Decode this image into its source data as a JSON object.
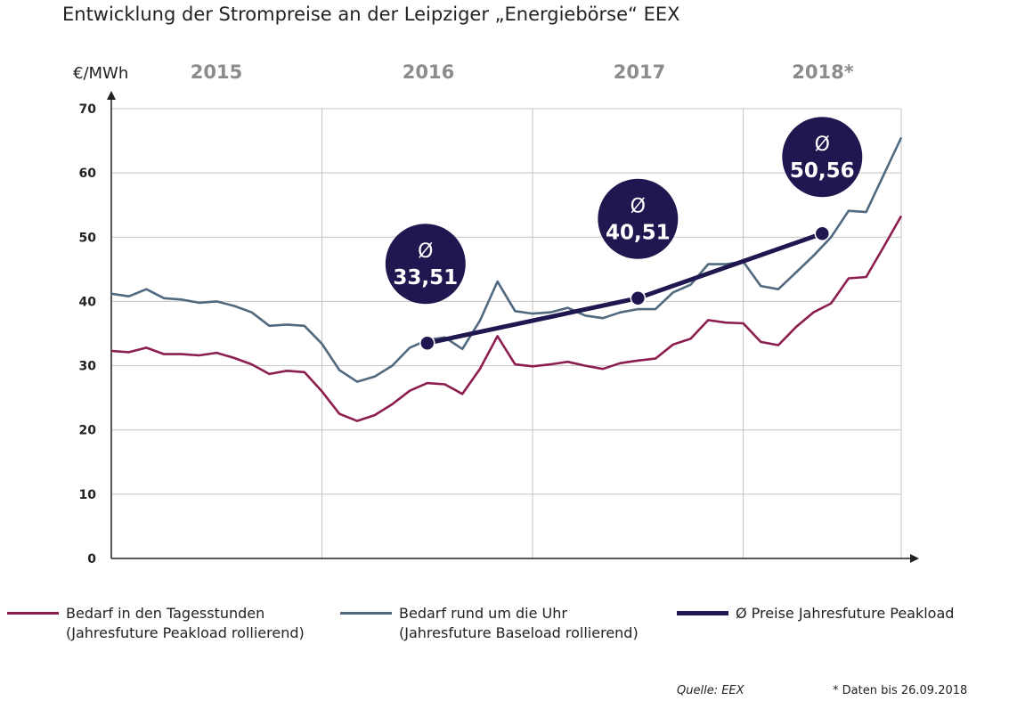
{
  "title": "Entwicklung der Strompreise an der Leipziger „Energiebörse“ EEX",
  "chart_data": {
    "type": "line",
    "title": "Entwicklung der Strompreise an der Leipziger „Energiebörse“ EEX",
    "ylabel": "€/MWh",
    "ylim": [
      0,
      70
    ],
    "yticks": [
      0,
      10,
      20,
      30,
      40,
      50,
      60,
      70
    ],
    "year_labels": [
      "2015",
      "2016",
      "2017",
      "2018*"
    ],
    "x_range_months": [
      0,
      45
    ],
    "grid": true,
    "series": [
      {
        "name": "Bedarf in den Tagesstunden",
        "subname": "(Jahresfuture Peakload rollierend)",
        "color": "#8b1e4e",
        "values": [
          32.3,
          32.1,
          32.8,
          31.8,
          31.8,
          31.6,
          32.0,
          31.2,
          30.2,
          28.7,
          29.2,
          29.0,
          26.0,
          22.5,
          21.4,
          22.3,
          24.0,
          26.1,
          27.3,
          27.1,
          25.6,
          29.5,
          34.6,
          30.2,
          29.9,
          30.2,
          30.6,
          30.0,
          29.5,
          30.4,
          30.8,
          31.1,
          33.3,
          34.2,
          37.1,
          36.7,
          36.6,
          33.7,
          33.2,
          36.0,
          38.3,
          39.7,
          43.6,
          43.8,
          48.5,
          53.3
        ]
      },
      {
        "name": "Bedarf rund um die Uhr",
        "subname": "(Jahresfuture Baseload rollierend)",
        "color": "#50697f",
        "values": [
          41.2,
          40.8,
          41.9,
          40.5,
          40.3,
          39.8,
          40.0,
          39.3,
          38.3,
          36.2,
          36.4,
          36.2,
          33.4,
          29.3,
          27.5,
          28.3,
          30.0,
          32.8,
          34.0,
          34.4,
          32.6,
          37.0,
          43.1,
          38.5,
          38.1,
          38.3,
          39.0,
          37.8,
          37.4,
          38.3,
          38.8,
          38.8,
          41.4,
          42.6,
          45.8,
          45.8,
          46.2,
          42.4,
          41.9,
          44.5,
          47.1,
          50.0,
          54.1,
          53.9,
          59.7,
          65.5
        ]
      },
      {
        "name": "Ø Preise Jahresfuture Peakload",
        "color": "#1f1850",
        "points": [
          {
            "month": 18,
            "value": 33.51,
            "label": "33,51"
          },
          {
            "month": 30,
            "value": 40.51,
            "label": "40,51"
          },
          {
            "month": 40.5,
            "value": 50.56,
            "label": "50,56"
          }
        ]
      }
    ]
  },
  "avg_symbol": "Ø",
  "source": "Quelle: EEX",
  "note": "* Daten bis 26.09.2018"
}
